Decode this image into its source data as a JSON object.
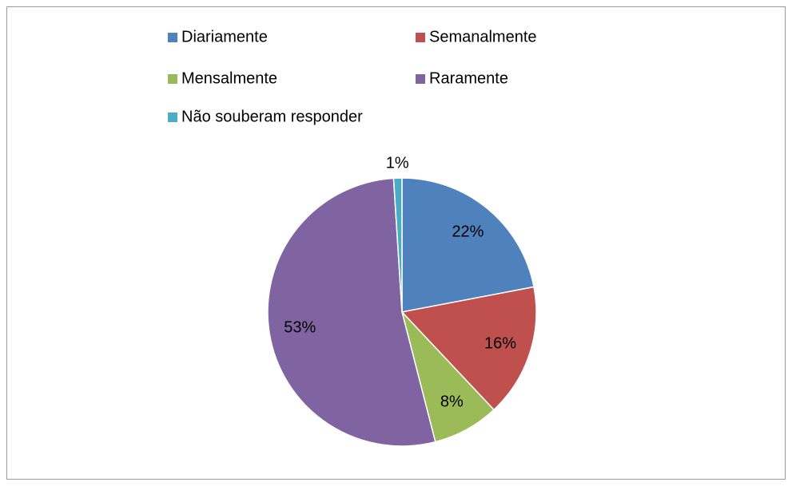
{
  "chart_data": {
    "type": "pie",
    "categories": [
      "Diariamente",
      "Semanalmente",
      "Mensalmente",
      "Raramente",
      "Não souberam responder"
    ],
    "values": [
      22,
      16,
      8,
      53,
      1
    ],
    "value_labels": [
      "22%",
      "16%",
      "8%",
      "53%",
      "1%"
    ],
    "colors": [
      "#4f81bd",
      "#c0504d",
      "#9bbb59",
      "#8064a2",
      "#4bacc6"
    ],
    "legend": "top"
  }
}
